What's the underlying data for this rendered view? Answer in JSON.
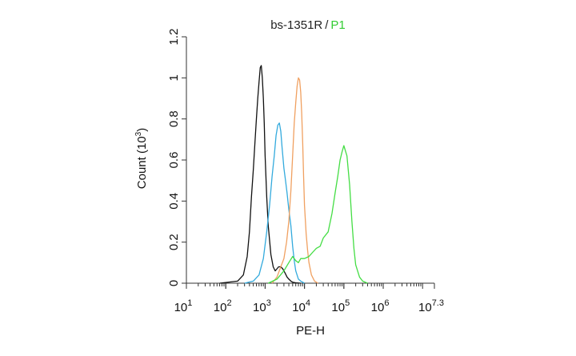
{
  "chart_data": {
    "type": "line",
    "title": {
      "sample": "bs-1351R",
      "separator": "/",
      "gate": "P1"
    },
    "xlabel": "PE-H",
    "ylabel": "Count (10",
    "ylabel_exponent": "3",
    "ylabel_close": ")",
    "x_scale": "log10",
    "xlim": [
      10,
      19952623
    ],
    "ylim": [
      0,
      1.2
    ],
    "x_ticks": [
      {
        "value": 10,
        "base": "10",
        "exp": "1"
      },
      {
        "value": 100,
        "base": "10",
        "exp": "2"
      },
      {
        "value": 1000,
        "base": "10",
        "exp": "3"
      },
      {
        "value": 10000,
        "base": "10",
        "exp": "4"
      },
      {
        "value": 100000,
        "base": "10",
        "exp": "5"
      },
      {
        "value": 1000000,
        "base": "10",
        "exp": "6"
      },
      {
        "value": 19952623,
        "base": "10",
        "exp": "7.3"
      }
    ],
    "y_ticks": [
      {
        "value": 0,
        "label": "0"
      },
      {
        "value": 0.2,
        "label": "0.2"
      },
      {
        "value": 0.4,
        "label": "0.4"
      },
      {
        "value": 0.6,
        "label": "0.6"
      },
      {
        "value": 0.8,
        "label": "0.8"
      },
      {
        "value": 1.0,
        "label": "1"
      },
      {
        "value": 1.2,
        "label": "1.2"
      }
    ],
    "grid": false,
    "legend": "none",
    "colors": {
      "title": "#222222",
      "gate": "#33cc33",
      "axis": "#333333"
    },
    "series": [
      {
        "color": "#111111",
        "x": [
          70,
          200,
          280,
          350,
          400,
          450,
          500,
          550,
          600,
          650,
          700,
          750,
          800,
          850,
          900,
          950,
          1000,
          1100,
          1200,
          1400,
          1600,
          1800,
          2000,
          2200,
          2500,
          2800,
          3200,
          3600,
          4000,
          4500,
          5000,
          6000,
          8000
        ],
        "y": [
          0,
          0.01,
          0.04,
          0.13,
          0.25,
          0.42,
          0.55,
          0.68,
          0.8,
          0.9,
          0.98,
          1.05,
          1.06,
          1.0,
          0.9,
          0.78,
          0.62,
          0.42,
          0.28,
          0.14,
          0.08,
          0.06,
          0.07,
          0.08,
          0.08,
          0.07,
          0.05,
          0.03,
          0.02,
          0.01,
          0.005,
          0.002,
          0
        ]
      },
      {
        "color": "#33aadd",
        "x": [
          300,
          500,
          700,
          900,
          1100,
          1300,
          1500,
          1700,
          1900,
          2100,
          2300,
          2500,
          2700,
          3000,
          3300,
          3600,
          4000,
          4500,
          5000,
          5500,
          6000,
          7000,
          8000,
          10000
        ],
        "y": [
          0,
          0.01,
          0.04,
          0.12,
          0.25,
          0.38,
          0.52,
          0.62,
          0.72,
          0.77,
          0.78,
          0.74,
          0.66,
          0.56,
          0.5,
          0.44,
          0.36,
          0.28,
          0.18,
          0.11,
          0.06,
          0.02,
          0.01,
          0
        ]
      },
      {
        "color": "#f0a060",
        "x": [
          1500,
          2000,
          2500,
          3000,
          3500,
          4000,
          4500,
          5000,
          5500,
          6000,
          6500,
          7000,
          7500,
          8000,
          8500,
          9000,
          9500,
          10000,
          11000,
          12000,
          13000,
          15000,
          18000,
          22000
        ],
        "y": [
          0,
          0.03,
          0.08,
          0.12,
          0.2,
          0.3,
          0.45,
          0.62,
          0.78,
          0.88,
          0.96,
          1.0,
          0.99,
          0.93,
          0.83,
          0.68,
          0.52,
          0.38,
          0.24,
          0.16,
          0.1,
          0.04,
          0.01,
          0
        ]
      },
      {
        "color": "#44dd44",
        "x": [
          1200,
          2000,
          3000,
          4000,
          5000,
          6000,
          7000,
          8000,
          10000,
          13000,
          16000,
          20000,
          25000,
          30000,
          40000,
          50000,
          60000,
          70000,
          80000,
          90000,
          100000,
          120000,
          140000,
          160000,
          180000,
          200000,
          250000,
          300000,
          400000
        ],
        "y": [
          0,
          0.02,
          0.06,
          0.1,
          0.13,
          0.11,
          0.1,
          0.12,
          0.12,
          0.13,
          0.15,
          0.17,
          0.18,
          0.22,
          0.25,
          0.34,
          0.44,
          0.52,
          0.6,
          0.64,
          0.67,
          0.62,
          0.48,
          0.3,
          0.17,
          0.09,
          0.03,
          0.01,
          0
        ]
      }
    ]
  }
}
